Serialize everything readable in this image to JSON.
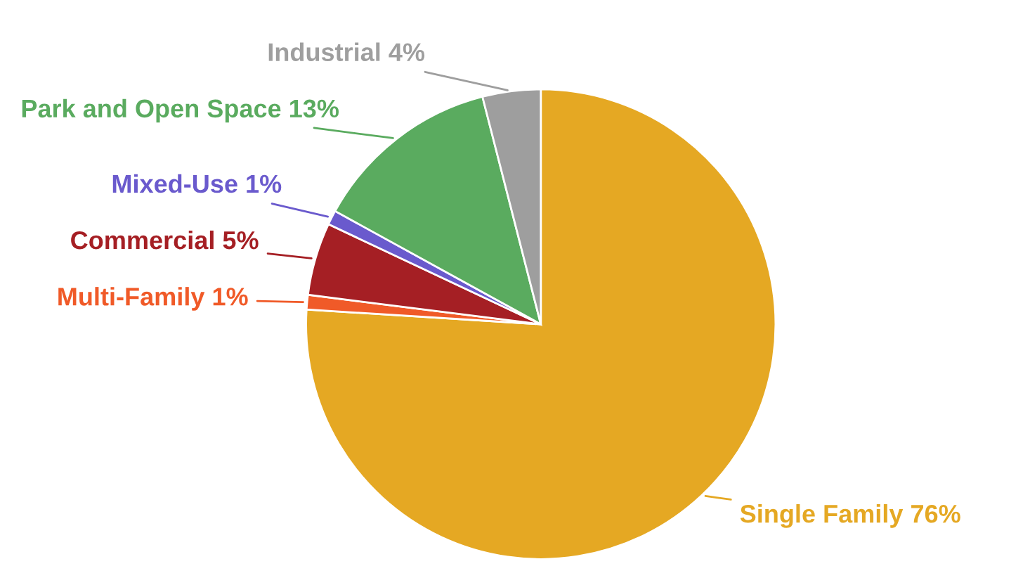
{
  "chart_data": {
    "type": "pie",
    "categories": [
      "Single Family",
      "Multi-Family",
      "Commercial",
      "Mixed-Use",
      "Park and Open Space",
      "Industrial"
    ],
    "values": [
      76,
      1,
      5,
      1,
      13,
      4
    ],
    "value_labels": [
      "76%",
      "1%",
      "5%",
      "1%",
      "13%",
      "4%"
    ],
    "colors": [
      "#e5a823",
      "#f05a28",
      "#a51f24",
      "#6a5acd",
      "#5aab5f",
      "#9e9e9e"
    ],
    "legend": false
  }
}
